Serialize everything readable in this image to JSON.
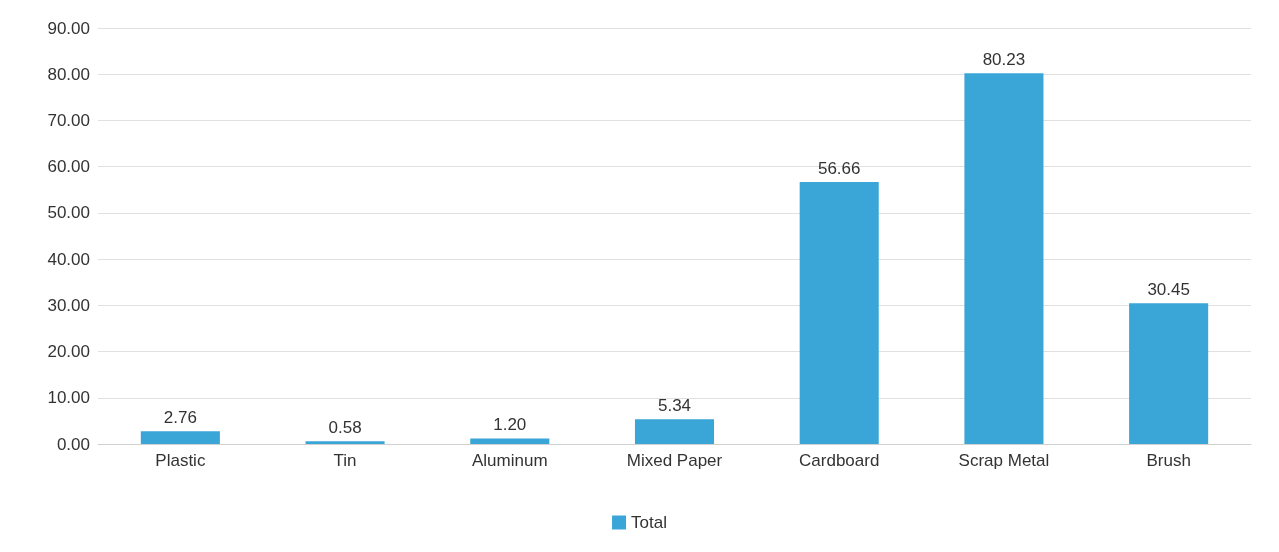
{
  "chart_data": {
    "type": "bar",
    "categories": [
      "Plastic",
      "Tin",
      "Aluminum",
      "Mixed Paper",
      "Cardboard",
      "Scrap Metal",
      "Brush"
    ],
    "series": [
      {
        "name": "Total",
        "color": "#3aa6d8",
        "values": [
          2.76,
          0.58,
          1.2,
          5.34,
          56.66,
          80.23,
          30.45
        ],
        "value_labels": [
          "2.76",
          "0.58",
          "1.20",
          "5.34",
          "56.66",
          "80.23",
          "30.45"
        ]
      }
    ],
    "ylim": [
      0,
      90
    ],
    "yticks": [
      {
        "value": 0,
        "label": "0.00"
      },
      {
        "value": 10,
        "label": "10.00"
      },
      {
        "value": 20,
        "label": "20.00"
      },
      {
        "value": 30,
        "label": "30.00"
      },
      {
        "value": 40,
        "label": "40.00"
      },
      {
        "value": 50,
        "label": "50.00"
      },
      {
        "value": 60,
        "label": "60.00"
      },
      {
        "value": 70,
        "label": "70.00"
      },
      {
        "value": 80,
        "label": "80.00"
      },
      {
        "value": 90,
        "label": "90.00"
      }
    ],
    "grid": "y",
    "legend": "bottom"
  }
}
